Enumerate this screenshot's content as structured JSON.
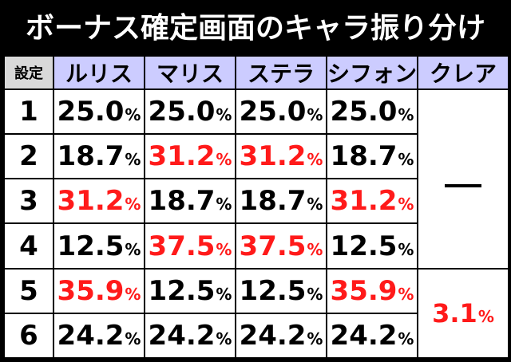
{
  "title": "ボーナス確定画面のキャラ振り分け",
  "headers": {
    "setting": "設定",
    "columns": [
      "ルリス",
      "マリス",
      "ステラ",
      "シフォン",
      "クレア"
    ]
  },
  "rows": [
    {
      "setting": "1",
      "values": [
        "25.0",
        "25.0",
        "25.0",
        "25.0"
      ],
      "highlight": [
        false,
        false,
        false,
        false
      ]
    },
    {
      "setting": "2",
      "values": [
        "18.7",
        "31.2",
        "31.2",
        "18.7"
      ],
      "highlight": [
        false,
        true,
        true,
        false
      ]
    },
    {
      "setting": "3",
      "values": [
        "31.2",
        "18.7",
        "18.7",
        "31.2"
      ],
      "highlight": [
        true,
        false,
        false,
        true
      ]
    },
    {
      "setting": "4",
      "values": [
        "12.5",
        "37.5",
        "37.5",
        "12.5"
      ],
      "highlight": [
        false,
        true,
        true,
        false
      ]
    },
    {
      "setting": "5",
      "values": [
        "35.9",
        "12.5",
        "12.5",
        "35.9"
      ],
      "highlight": [
        true,
        false,
        false,
        true
      ]
    },
    {
      "setting": "6",
      "values": [
        "24.2",
        "24.2",
        "24.2",
        "24.2"
      ],
      "highlight": [
        false,
        false,
        false,
        false
      ]
    }
  ],
  "percent_sign": "%",
  "clear": {
    "settings_1_4": "—",
    "settings_5_6": "3.1"
  },
  "colors": {
    "background": "#000000",
    "header_bg": "#ccccff",
    "setting_header_bg": "#d9d9d9",
    "cell_bg": "#ffffff",
    "highlight_text": "#ff1a1a"
  }
}
